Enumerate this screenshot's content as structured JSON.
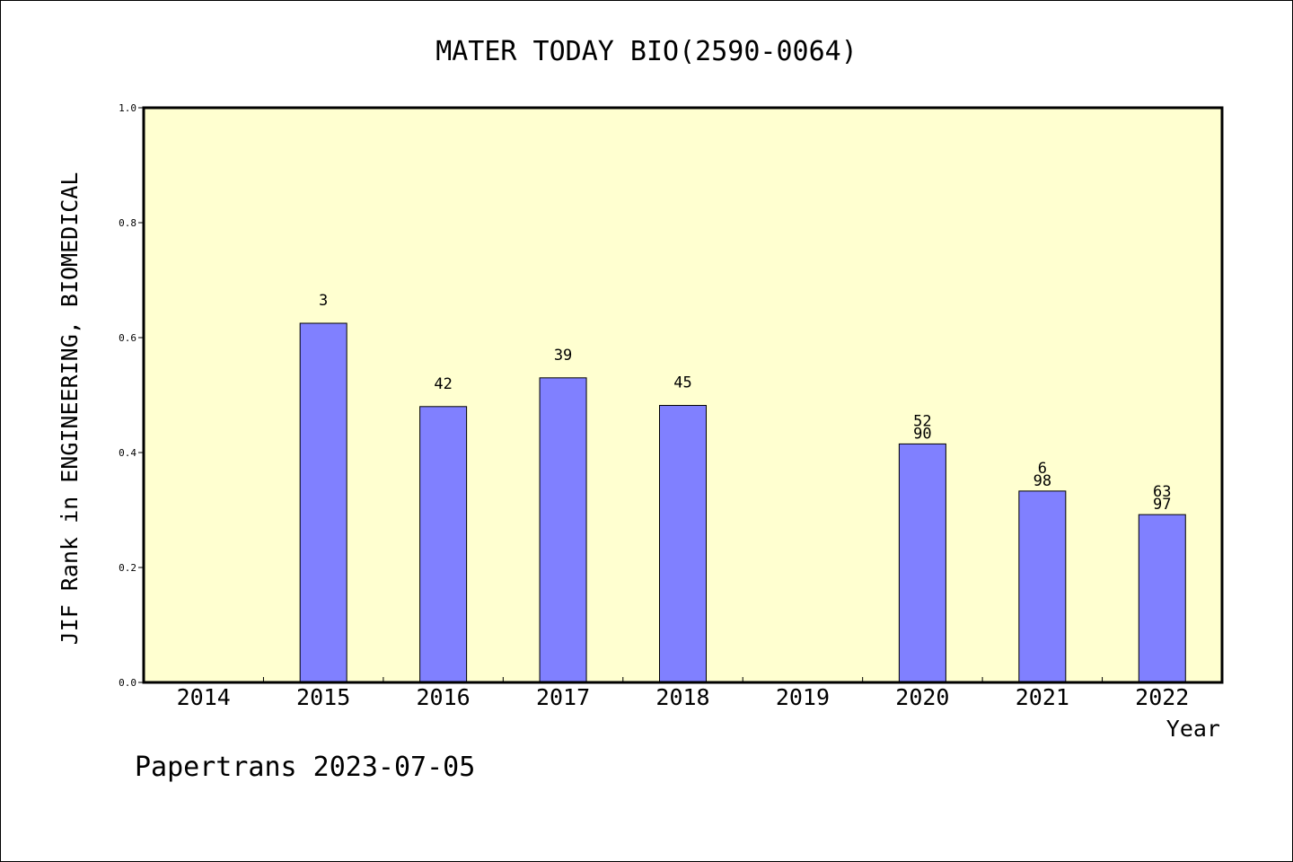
{
  "chart_data": {
    "type": "bar",
    "title": "MATER TODAY BIO(2590-0064)",
    "xlabel": "Year",
    "ylabel": "JIF Rank in ENGINEERING, BIOMEDICAL",
    "ylim": [
      0,
      1.0
    ],
    "yticks": [
      "0.0",
      "0.2",
      "0.4",
      "0.6",
      "0.8",
      "1.0"
    ],
    "categories": [
      "2014",
      "2015",
      "2016",
      "2017",
      "2018",
      "2019",
      "2020",
      "2021",
      "2022"
    ],
    "values": [
      null,
      0.625,
      0.48,
      0.53,
      0.482,
      null,
      0.415,
      0.333,
      0.292
    ],
    "bar_labels": [
      [],
      [
        "3"
      ],
      [
        "42"
      ],
      [
        "39"
      ],
      [
        "45"
      ],
      [],
      [
        "52",
        "90"
      ],
      [
        "6",
        "98"
      ],
      [
        "63",
        "97"
      ]
    ],
    "bar_color": "#8080ff",
    "plot_background": "#ffffd0",
    "grid": false,
    "legend": "none"
  },
  "footer": "Papertrans 2023-07-05"
}
